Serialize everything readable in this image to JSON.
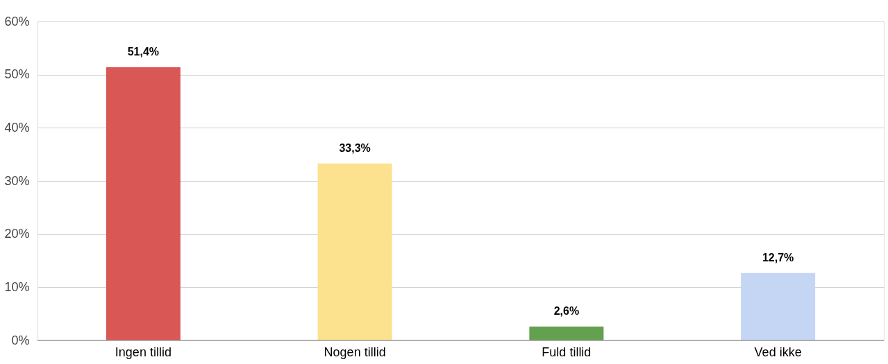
{
  "chart_data": {
    "type": "bar",
    "categories": [
      "Ingen tillid",
      "Nogen tillid",
      "Fuld tillid",
      "Ved ikke"
    ],
    "values": [
      51.4,
      33.3,
      2.6,
      12.7
    ],
    "colors": [
      "#d95755",
      "#fce28f",
      "#63a04f",
      "#c5d6f4"
    ],
    "value_labels": [
      "51,4%",
      "33,3%",
      "2,6%",
      "12,7%"
    ],
    "ylim": [
      0,
      60
    ],
    "yticks": [
      {
        "value": 0,
        "label": "0%"
      },
      {
        "value": 10,
        "label": "10%"
      },
      {
        "value": 20,
        "label": "20%"
      },
      {
        "value": 30,
        "label": "30%"
      },
      {
        "value": 40,
        "label": "40%"
      },
      {
        "value": 50,
        "label": "50%"
      },
      {
        "value": 60,
        "label": "60%"
      }
    ],
    "grid": "y"
  }
}
